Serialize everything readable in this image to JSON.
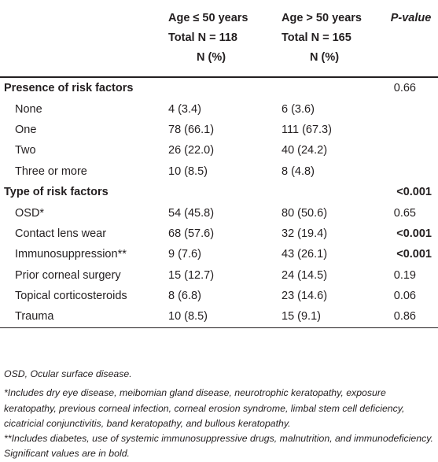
{
  "header": {
    "col_a": [
      "Age ≤ 50 years",
      "Total N = 118",
      "N (%)"
    ],
    "col_b": [
      "Age > 50 years",
      "Total N = 165",
      "N (%)"
    ],
    "col_p": "P-value"
  },
  "rows": [
    {
      "type": "section",
      "label": "Presence of risk factors",
      "a": "",
      "b": "",
      "p": "0.66",
      "p_bold": false
    },
    {
      "type": "item",
      "label": "None",
      "a": "4 (3.4)",
      "b": "6 (3.6)",
      "p": "",
      "p_bold": false
    },
    {
      "type": "item",
      "label": "One",
      "a": "78 (66.1)",
      "b": "111 (67.3)",
      "p": "",
      "p_bold": false
    },
    {
      "type": "item",
      "label": "Two",
      "a": "26 (22.0)",
      "b": "40 (24.2)",
      "p": "",
      "p_bold": false
    },
    {
      "type": "item",
      "label": "Three or more",
      "a": "10 (8.5)",
      "b": "8 (4.8)",
      "p": "",
      "p_bold": false
    },
    {
      "type": "section",
      "label": "Type of risk factors",
      "a": "",
      "b": "",
      "p": "<0.001",
      "p_bold": true
    },
    {
      "type": "item",
      "label": "OSD*",
      "a": "54 (45.8)",
      "b": "80 (50.6)",
      "p": "0.65",
      "p_bold": false
    },
    {
      "type": "item",
      "label": "Contact lens wear",
      "a": "68 (57.6)",
      "b": "32 (19.4)",
      "p": "<0.001",
      "p_bold": true
    },
    {
      "type": "item",
      "label": "Immunosuppression**",
      "a": "9 (7.6)",
      "b": "43 (26.1)",
      "p": "<0.001",
      "p_bold": true
    },
    {
      "type": "item",
      "label": "Prior corneal surgery",
      "a": "15 (12.7)",
      "b": "24 (14.5)",
      "p": "0.19",
      "p_bold": false
    },
    {
      "type": "item",
      "label": "Topical corticosteroids",
      "a": "8 (6.8)",
      "b": "23 (14.6)",
      "p": "0.06",
      "p_bold": false
    },
    {
      "type": "item",
      "label": "Trauma",
      "a": "10 (8.5)",
      "b": "15 (9.1)",
      "p": "0.86",
      "p_bold": false
    }
  ],
  "footnotes": {
    "abbr": "OSD, Ocular surface disease.",
    "star1": "*Includes dry eye disease, meibomian gland disease, neurotrophic keratopathy, exposure keratopathy, previous corneal infection, corneal erosion syndrome, limbal stem cell deficiency, cicatricial conjunctivitis, band keratopathy, and bullous keratopathy.",
    "star2": "**Includes diabetes, use of systemic immunosuppressive drugs, malnutrition, and immunodeficiency. Significant values are in bold."
  }
}
